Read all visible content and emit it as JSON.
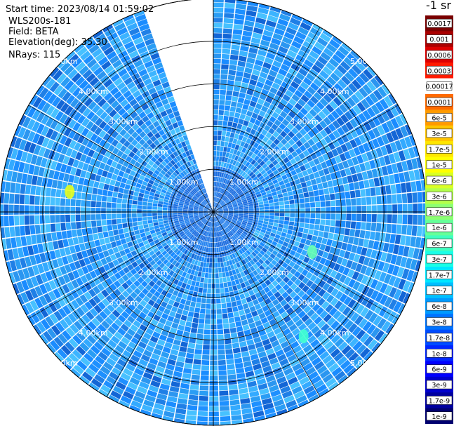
{
  "header": {
    "start_time": "Start time: 2023/08/14 01:59:02",
    "instrument": "WLS200s-181",
    "field": "Field: BETA",
    "elevation": "Elevation(deg): 35.30",
    "nrays": "NRays: 115"
  },
  "colorbar": {
    "unit_label": "-1 sr",
    "ticks": [
      "0.0017",
      "0.001",
      "0.0006",
      "0.0003",
      "0.00017",
      "0.0001",
      "6e-5",
      "3e-5",
      "1.7e-5",
      "1e-5",
      "6e-6",
      "3e-6",
      "1.7e-6",
      "1e-6",
      "6e-7",
      "3e-7",
      "1.7e-7",
      "1e-7",
      "6e-8",
      "3e-8",
      "1.7e-8",
      "1e-8",
      "6e-9",
      "3e-9",
      "1.7e-9",
      "1e-9"
    ],
    "colors": [
      "#7a0000",
      "#aa0000",
      "#dd0000",
      "#ff1a00",
      "#ffffff",
      "#ff6a00",
      "#ff9a00",
      "#ffc400",
      "#ffe600",
      "#ffff00",
      "#d9ff26",
      "#b3ff4c",
      "#8cff73",
      "#66ff99",
      "#40ffbf",
      "#1affe6",
      "#00e6ff",
      "#00bfff",
      "#0099ff",
      "#0073ff",
      "#004cff",
      "#0026ff",
      "#0000ff",
      "#0000cc",
      "#00009e",
      "#000070"
    ]
  },
  "chart_data": {
    "type": "ppi_polar",
    "field": "BETA",
    "elevation_deg": 35.3,
    "nrays": 115,
    "max_range_km": 5.0,
    "range_rings_km": [
      1.0,
      2.0,
      3.0,
      4.0,
      5.0
    ],
    "range_labels": [
      "1.00km",
      "2.00km",
      "3.00km",
      "4.00km",
      "5.00km"
    ],
    "gap_azimuth_deg": [
      341,
      359
    ],
    "hotspots": [
      {
        "azimuth_deg": 278,
        "range_km": 3.4,
        "value": "1e-5"
      },
      {
        "azimuth_deg": 112,
        "range_km": 2.5,
        "value": "1.7e-6"
      },
      {
        "azimuth_deg": 144,
        "range_km": 3.6,
        "value": "1e-6"
      }
    ],
    "dominant_value": "3e-8"
  }
}
